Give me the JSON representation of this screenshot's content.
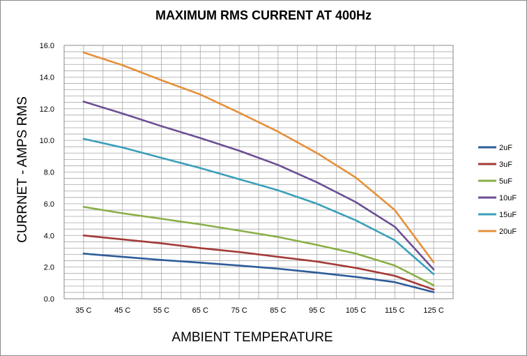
{
  "chart_data": {
    "type": "line",
    "title": "MAXIMUM RMS CURRENT AT 400Hz",
    "xlabel": "AMBIENT TEMPERATURE",
    "ylabel": "CURRNET -  AMPS RMS",
    "categories": [
      "35 C",
      "45 C",
      "55 C",
      "65 C",
      "75 C",
      "85 C",
      "95 C",
      "105 C",
      "115 C",
      "125 C"
    ],
    "ylim": [
      0,
      16
    ],
    "yticks": [
      "0.0",
      "2.0",
      "4.0",
      "6.0",
      "8.0",
      "10.0",
      "12.0",
      "14.0",
      "16.0"
    ],
    "grid": true,
    "legend": "right",
    "series": [
      {
        "name": "2uF",
        "color": "#2E5C9A",
        "values": [
          2.85,
          2.65,
          2.45,
          2.28,
          2.1,
          1.9,
          1.65,
          1.38,
          1.05,
          0.42
        ]
      },
      {
        "name": "3uF",
        "color": "#A33A37",
        "values": [
          4.0,
          3.75,
          3.5,
          3.2,
          2.95,
          2.65,
          2.35,
          1.95,
          1.45,
          0.58
        ]
      },
      {
        "name": "5uF",
        "color": "#8AAE46",
        "values": [
          5.8,
          5.4,
          5.05,
          4.7,
          4.3,
          3.9,
          3.4,
          2.85,
          2.1,
          0.85
        ]
      },
      {
        "name": "10uF",
        "color": "#6B4E94",
        "values": [
          12.45,
          11.7,
          10.9,
          10.15,
          9.35,
          8.45,
          7.35,
          6.1,
          4.55,
          1.85
        ]
      },
      {
        "name": "15uF",
        "color": "#3A9FBA",
        "values": [
          10.1,
          9.55,
          8.9,
          8.25,
          7.55,
          6.85,
          6.0,
          4.95,
          3.7,
          1.55
        ]
      },
      {
        "name": "20uF",
        "color": "#E6903A",
        "values": [
          15.55,
          14.75,
          13.8,
          12.9,
          11.75,
          10.55,
          9.2,
          7.65,
          5.6,
          2.3
        ]
      }
    ]
  }
}
